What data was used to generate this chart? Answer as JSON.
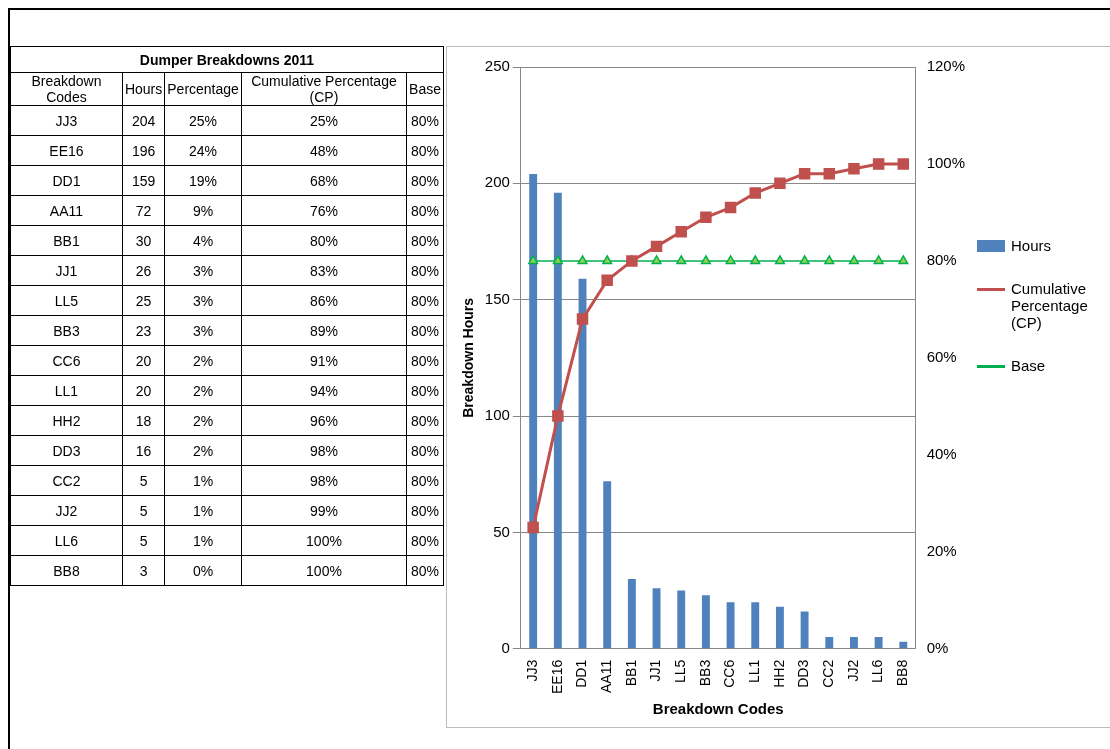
{
  "chart_data": [
    {
      "type": "other",
      "title": "Dumper Breakdowns 2011",
      "xlabel": "Breakdown Codes",
      "categories": [
        "JJ3",
        "EE16",
        "DD1",
        "AA11",
        "BB1",
        "JJ1",
        "LL5",
        "BB3",
        "CC6",
        "LL1",
        "HH2",
        "DD3",
        "CC2",
        "JJ2",
        "LL6",
        "BB8"
      ],
      "series": [
        {
          "name": "Hours",
          "values": [
            204,
            196,
            159,
            72,
            30,
            26,
            25,
            23,
            20,
            20,
            18,
            16,
            5,
            5,
            5,
            3
          ],
          "value_labels": [
            "204",
            "196",
            "159",
            "72",
            "30",
            "26",
            "25",
            "23",
            "20",
            "20",
            "18",
            "16",
            "5",
            "5",
            "5",
            "3"
          ]
        },
        {
          "name": "Percentage",
          "values": [
            25,
            24,
            19,
            9,
            4,
            3,
            3,
            3,
            2,
            2,
            2,
            2,
            1,
            1,
            1,
            0
          ],
          "value_labels": [
            "25%",
            "24%",
            "19%",
            "9%",
            "4%",
            "3%",
            "3%",
            "3%",
            "2%",
            "2%",
            "2%",
            "2%",
            "1%",
            "1%",
            "1%",
            "0%"
          ]
        },
        {
          "name": "Cumulative Percentage (CP)",
          "values": [
            25,
            48,
            68,
            76,
            80,
            83,
            86,
            89,
            91,
            94,
            96,
            98,
            98,
            99,
            100,
            100
          ],
          "value_labels": [
            "25%",
            "48%",
            "68%",
            "76%",
            "80%",
            "83%",
            "86%",
            "89%",
            "91%",
            "94%",
            "96%",
            "98%",
            "98%",
            "99%",
            "100%",
            "100%"
          ]
        },
        {
          "name": "Base",
          "values": [
            80,
            80,
            80,
            80,
            80,
            80,
            80,
            80,
            80,
            80,
            80,
            80,
            80,
            80,
            80,
            80
          ],
          "value_labels": [
            "80%",
            "80%",
            "80%",
            "80%",
            "80%",
            "80%",
            "80%",
            "80%",
            "80%",
            "80%",
            "80%",
            "80%",
            "80%",
            "80%",
            "80%",
            "80%"
          ]
        }
      ]
    },
    {
      "type": "bar",
      "xlabel": "Breakdown Codes",
      "ylabel": "Breakdown Hours",
      "categories": [
        "JJ3",
        "EE16",
        "DD1",
        "AA11",
        "BB1",
        "JJ1",
        "LL5",
        "BB3",
        "CC6",
        "LL1",
        "HH2",
        "DD3",
        "CC2",
        "JJ2",
        "LL6",
        "BB8"
      ],
      "series": [
        {
          "name": "Hours",
          "type": "bar",
          "color": "#4f81bd",
          "values": [
            204,
            196,
            159,
            72,
            30,
            26,
            25,
            23,
            20,
            20,
            18,
            16,
            5,
            5,
            5,
            3
          ]
        },
        {
          "name": "Cumulative Percentage (CP)",
          "type": "line",
          "axis": "y2",
          "color": "#c0504d",
          "marker": "square",
          "values": [
            25,
            48,
            68,
            76,
            80,
            83,
            86,
            89,
            91,
            94,
            96,
            98,
            98,
            99,
            100,
            100
          ]
        },
        {
          "name": "Base",
          "type": "line",
          "axis": "y2",
          "color": "#00b050",
          "marker": "triangle",
          "values": [
            80,
            80,
            80,
            80,
            80,
            80,
            80,
            80,
            80,
            80,
            80,
            80,
            80,
            80,
            80,
            80
          ]
        }
      ],
      "ylim": [
        0,
        250
      ],
      "yticks": [
        0,
        50,
        100,
        150,
        200,
        250
      ],
      "y2lim": [
        0,
        120
      ],
      "y2ticks": [
        {
          "value": 0,
          "label": "0%"
        },
        {
          "value": 20,
          "label": "20%"
        },
        {
          "value": 40,
          "label": "40%"
        },
        {
          "value": 60,
          "label": "60%"
        },
        {
          "value": 80,
          "label": "80%"
        },
        {
          "value": 100,
          "label": "100%"
        },
        {
          "value": 120,
          "label": "120%"
        }
      ],
      "grid": "y",
      "legend": "right"
    }
  ]
}
